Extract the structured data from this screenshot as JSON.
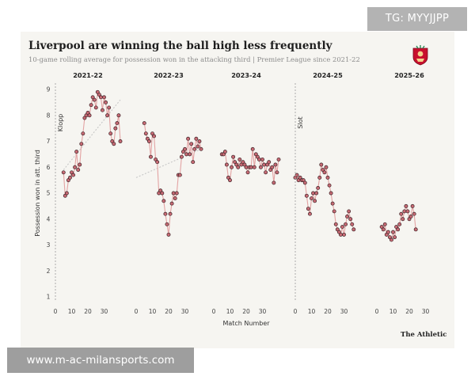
{
  "watermarks": {
    "top": "TG: MYYJJPP",
    "bottom": "www.m-ac-milansports.com"
  },
  "brand": "The Athletic",
  "crest_icon": "liverpool-crest-icon",
  "colors": {
    "line": "#e3a3a3",
    "dot_fill": "#c86a74",
    "dot_edge": "#3a2226",
    "trend": "#c7c7c7",
    "background": "#f6f5f1"
  },
  "chart_data": {
    "type": "scatter",
    "title": "Liverpool are winning the ball high less frequently",
    "subtitle": "10-game rolling average for possession won in the attacking third | Premier League since 2021-22",
    "xlabel": "Match Number",
    "ylabel": "Possession won in att. third",
    "ylim": [
      1,
      9
    ],
    "yticks": [
      1,
      2,
      3,
      4,
      5,
      6,
      7,
      8,
      9
    ],
    "xlim": [
      0,
      38
    ],
    "xticks": [
      0,
      10,
      20,
      30
    ],
    "grid": false,
    "annotations": [
      {
        "label": "Klopp",
        "panel": 0,
        "x": 0
      },
      {
        "label": "Slot",
        "panel": 3,
        "x": 0
      }
    ],
    "panels": [
      {
        "season": "2021-22",
        "points": [
          [
            5,
            5.8
          ],
          [
            6,
            4.9
          ],
          [
            7,
            5.0
          ],
          [
            8,
            5.5
          ],
          [
            9,
            5.6
          ],
          [
            10,
            5.8
          ],
          [
            11,
            5.7
          ],
          [
            12,
            6.0
          ],
          [
            13,
            6.6
          ],
          [
            14,
            5.9
          ],
          [
            15,
            6.1
          ],
          [
            16,
            6.9
          ],
          [
            17,
            7.3
          ],
          [
            18,
            7.9
          ],
          [
            19,
            8.0
          ],
          [
            20,
            8.1
          ],
          [
            21,
            8.0
          ],
          [
            22,
            8.4
          ],
          [
            23,
            8.7
          ],
          [
            24,
            8.6
          ],
          [
            25,
            8.3
          ],
          [
            26,
            8.9
          ],
          [
            27,
            8.8
          ],
          [
            28,
            8.7
          ],
          [
            29,
            8.2
          ],
          [
            30,
            8.7
          ],
          [
            31,
            8.5
          ],
          [
            32,
            8.0
          ],
          [
            33,
            8.3
          ],
          [
            34,
            7.3
          ],
          [
            35,
            7.0
          ],
          [
            36,
            6.9
          ],
          [
            37,
            7.5
          ],
          [
            38,
            7.7
          ],
          [
            39,
            8.0
          ],
          [
            40,
            7.0
          ]
        ],
        "trend": [
          [
            5,
            5.9
          ],
          [
            40,
            8.6
          ]
        ]
      },
      {
        "season": "2022-23",
        "points": [
          [
            5,
            7.7
          ],
          [
            6,
            7.3
          ],
          [
            7,
            7.1
          ],
          [
            8,
            7.0
          ],
          [
            9,
            6.4
          ],
          [
            10,
            7.3
          ],
          [
            11,
            7.2
          ],
          [
            12,
            6.3
          ],
          [
            13,
            6.2
          ],
          [
            14,
            5.0
          ],
          [
            15,
            5.1
          ],
          [
            16,
            5.0
          ],
          [
            17,
            4.7
          ],
          [
            18,
            4.2
          ],
          [
            19,
            3.8
          ],
          [
            20,
            3.4
          ],
          [
            21,
            4.2
          ],
          [
            22,
            4.6
          ],
          [
            23,
            5.0
          ],
          [
            24,
            4.8
          ],
          [
            25,
            5.0
          ],
          [
            26,
            5.7
          ],
          [
            27,
            5.7
          ],
          [
            28,
            6.4
          ],
          [
            29,
            6.6
          ],
          [
            30,
            6.7
          ],
          [
            31,
            6.5
          ],
          [
            32,
            7.1
          ],
          [
            33,
            6.5
          ],
          [
            34,
            6.9
          ],
          [
            35,
            6.2
          ],
          [
            36,
            6.7
          ],
          [
            37,
            7.1
          ],
          [
            38,
            6.8
          ],
          [
            39,
            7.0
          ],
          [
            40,
            6.7
          ]
        ],
        "trend": [
          [
            0,
            5.6
          ],
          [
            40,
            6.7
          ]
        ]
      },
      {
        "season": "2023-24",
        "points": [
          [
            5,
            6.5
          ],
          [
            6,
            6.5
          ],
          [
            7,
            6.6
          ],
          [
            8,
            6.1
          ],
          [
            9,
            5.6
          ],
          [
            10,
            5.5
          ],
          [
            11,
            6.0
          ],
          [
            12,
            6.4
          ],
          [
            13,
            6.2
          ],
          [
            14,
            6.1
          ],
          [
            15,
            6.0
          ],
          [
            16,
            6.3
          ],
          [
            17,
            6.1
          ],
          [
            18,
            6.2
          ],
          [
            19,
            6.1
          ],
          [
            20,
            6.0
          ],
          [
            21,
            5.8
          ],
          [
            22,
            6.0
          ],
          [
            23,
            6.0
          ],
          [
            24,
            6.7
          ],
          [
            25,
            6.0
          ],
          [
            26,
            6.5
          ],
          [
            27,
            6.4
          ],
          [
            28,
            6.3
          ],
          [
            29,
            6.0
          ],
          [
            30,
            6.3
          ],
          [
            31,
            6.1
          ],
          [
            32,
            5.8
          ],
          [
            33,
            6.1
          ],
          [
            34,
            6.2
          ],
          [
            35,
            5.9
          ],
          [
            36,
            6.0
          ],
          [
            37,
            5.4
          ],
          [
            38,
            6.1
          ],
          [
            39,
            5.8
          ],
          [
            40,
            6.3
          ]
        ],
        "trend": null
      },
      {
        "season": "2024-25",
        "points": [
          [
            0,
            5.6
          ],
          [
            1,
            5.7
          ],
          [
            2,
            5.5
          ],
          [
            3,
            5.6
          ],
          [
            4,
            5.5
          ],
          [
            5,
            5.5
          ],
          [
            6,
            5.4
          ],
          [
            7,
            4.9
          ],
          [
            8,
            4.4
          ],
          [
            9,
            4.2
          ],
          [
            10,
            4.8
          ],
          [
            11,
            5.0
          ],
          [
            12,
            4.7
          ],
          [
            13,
            5.0
          ],
          [
            14,
            5.2
          ],
          [
            15,
            5.6
          ],
          [
            16,
            6.1
          ],
          [
            17,
            5.9
          ],
          [
            18,
            5.8
          ],
          [
            19,
            6.0
          ],
          [
            20,
            5.6
          ],
          [
            21,
            5.3
          ],
          [
            22,
            5.0
          ],
          [
            23,
            4.6
          ],
          [
            24,
            4.3
          ],
          [
            25,
            3.8
          ],
          [
            26,
            3.6
          ],
          [
            27,
            3.5
          ],
          [
            28,
            3.4
          ],
          [
            29,
            3.7
          ],
          [
            30,
            3.4
          ],
          [
            31,
            3.8
          ],
          [
            32,
            4.1
          ],
          [
            33,
            4.3
          ],
          [
            34,
            4.0
          ],
          [
            35,
            3.8
          ],
          [
            36,
            3.6
          ]
        ],
        "trend": null
      },
      {
        "season": "2025-26",
        "points": [
          [
            3,
            3.7
          ],
          [
            4,
            3.6
          ],
          [
            5,
            3.8
          ],
          [
            6,
            3.4
          ],
          [
            7,
            3.5
          ],
          [
            8,
            3.3
          ],
          [
            9,
            3.2
          ],
          [
            10,
            3.5
          ],
          [
            11,
            3.3
          ],
          [
            12,
            3.7
          ],
          [
            13,
            3.6
          ],
          [
            14,
            3.8
          ],
          [
            15,
            4.2
          ],
          [
            16,
            4.0
          ],
          [
            17,
            4.3
          ],
          [
            18,
            4.5
          ],
          [
            19,
            4.3
          ],
          [
            20,
            4.0
          ],
          [
            21,
            4.1
          ],
          [
            22,
            4.5
          ],
          [
            23,
            4.2
          ],
          [
            24,
            3.6
          ]
        ],
        "trend": null
      }
    ]
  }
}
